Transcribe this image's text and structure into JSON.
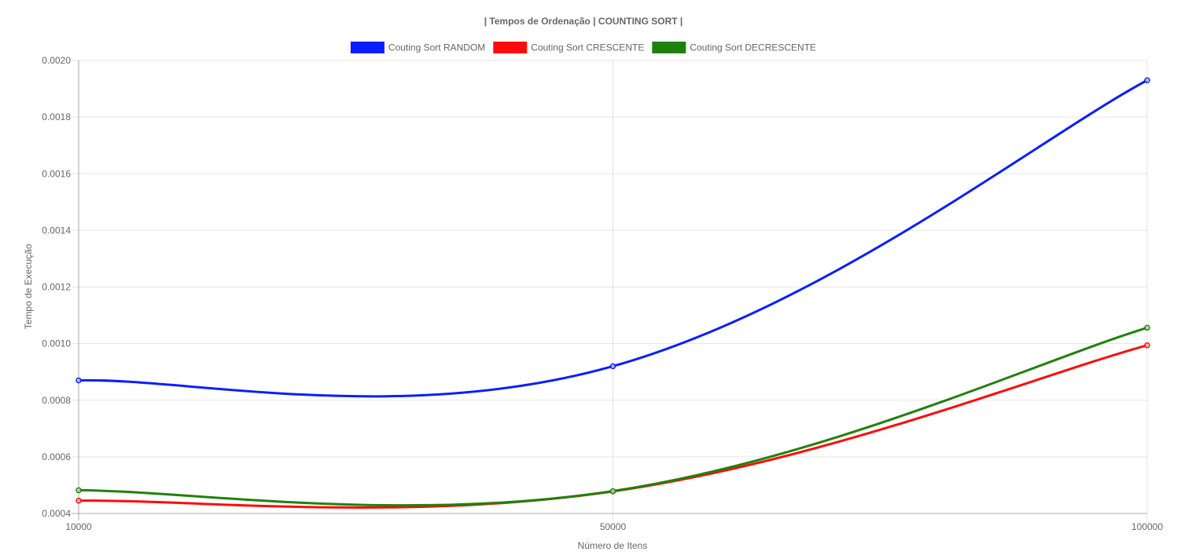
{
  "chart_data": {
    "type": "line",
    "title": "| Tempos de Ordenação | COUNTING SORT |",
    "xlabel": "Número de Itens",
    "ylabel": "Tempo de Execução",
    "x": [
      "10000",
      "50000",
      "100000"
    ],
    "ylim": [
      0.0004,
      0.002
    ],
    "yticks": [
      "0.0004",
      "0.0006",
      "0.0008",
      "0.0010",
      "0.0012",
      "0.0014",
      "0.0016",
      "0.0018",
      "0.0020"
    ],
    "grid": true,
    "legend_position": "top",
    "smooth": true,
    "series": [
      {
        "name": "Couting Sort RANDOM",
        "color": "#0a1eff",
        "values": [
          0.00087,
          0.00092,
          0.00193
        ]
      },
      {
        "name": "Couting Sort CRESCENTE",
        "color": "#ff0a0a",
        "values": [
          0.000445,
          0.000478,
          0.000994
        ]
      },
      {
        "name": "Couting Sort DECRESCENTE",
        "color": "#1e820a",
        "values": [
          0.000482,
          0.000479,
          0.001056
        ]
      }
    ]
  }
}
